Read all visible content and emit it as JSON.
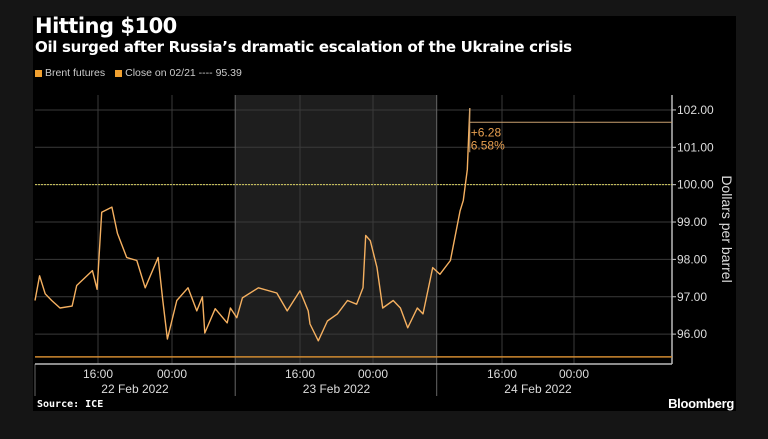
{
  "colors": {
    "line": "#f5b060",
    "close": "#d08a30",
    "hundred": "#d8d060",
    "shade": "#1e1e1e",
    "grid": "#3a3a3a"
  },
  "chart_data": {
    "type": "line",
    "title": "Hitting $100",
    "subtitle": "Oil surged after Russia’s dramatic escalation of the Ukraine crisis",
    "legend": [
      {
        "label": "Brent futures"
      },
      {
        "label": "Close on 02/21 ---- 95.39"
      }
    ],
    "ylabel": "Dollars per barrel",
    "y_ticks": [
      "96.00",
      "97.00",
      "98.00",
      "99.00",
      "100.00",
      "101.00",
      "102.00"
    ],
    "ylim": [
      95.2,
      102.4
    ],
    "x_unit": "hours since 22 Feb 2022 00:00",
    "xlim": [
      9.2,
      82.9
    ],
    "x_ticks": [
      {
        "x": 16,
        "label": "16:00"
      },
      {
        "x": 24,
        "label": "00:00"
      },
      {
        "x": 40,
        "label": "16:00"
      },
      {
        "x": 48,
        "label": "00:00"
      },
      {
        "x": 64,
        "label": "16:00"
      },
      {
        "x": 72,
        "label": "00:00"
      }
    ],
    "x_day_labels": [
      {
        "x": 20,
        "label": "22 Feb 2022"
      },
      {
        "x": 44,
        "label": "23 Feb 2022"
      },
      {
        "x": 68,
        "label": "24 Feb 2022"
      }
    ],
    "day_separators": [
      31.9,
      55.9
    ],
    "shaded_range": [
      31.9,
      55.9
    ],
    "close_value": 95.39,
    "reference_line": 100,
    "last_value": 101.67,
    "annotation": {
      "change": "+6.28",
      "percent": "6.58%"
    },
    "series": [
      {
        "name": "Brent futures",
        "x": [
          9.2,
          9.7,
          10.3,
          11.0,
          11.9,
          13.2,
          13.7,
          15.4,
          15.9,
          16.4,
          17.5,
          18.1,
          19.1,
          20.2,
          21.1,
          22.5,
          23.0,
          23.5,
          24.6,
          26.0,
          27.1,
          27.8,
          28.1,
          29.4,
          30.9,
          31.3,
          32.1,
          32.8,
          34.8,
          37.1,
          38.4,
          40.0,
          40.9,
          41.1,
          42.0,
          43.0,
          44.1,
          45.2,
          46.2,
          46.9,
          47.2,
          47.7,
          48.5,
          49.2,
          50.5,
          51.4,
          52.3,
          53.5,
          54.2,
          55.4,
          56.3,
          57.6,
          58.8,
          59.2,
          59.7,
          60.0
        ],
        "values": [
          96.9,
          97.56,
          97.08,
          96.9,
          96.7,
          96.75,
          97.3,
          97.7,
          97.2,
          99.26,
          99.4,
          98.7,
          98.05,
          97.97,
          97.24,
          98.05,
          96.9,
          95.87,
          96.9,
          97.24,
          96.62,
          97.0,
          96.03,
          96.68,
          96.3,
          96.7,
          96.44,
          96.97,
          97.24,
          97.1,
          96.62,
          97.16,
          96.62,
          96.27,
          95.82,
          96.35,
          96.54,
          96.9,
          96.8,
          97.24,
          98.64,
          98.5,
          97.78,
          96.7,
          96.9,
          96.7,
          96.17,
          96.7,
          96.54,
          97.78,
          97.6,
          97.97,
          99.3,
          99.58,
          100.4,
          102.05
        ]
      }
    ]
  },
  "footer": {
    "source": "Source: ICE",
    "brand": "Bloomberg"
  }
}
